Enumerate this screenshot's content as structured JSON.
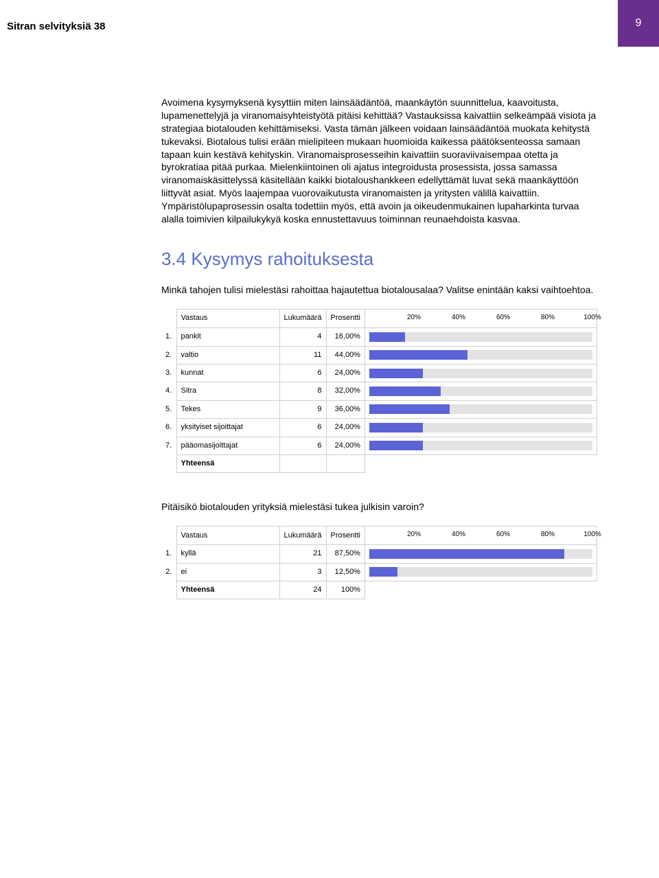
{
  "header": {
    "series_title": "Sitran selvityksiä 38",
    "page_number": "9",
    "page_number_bg": "#6a2e8e",
    "page_number_fg": "#ffffff"
  },
  "body_paragraph": "Avoimena kysymyksenä kysyttiin miten lainsäädäntöä, maankäytön suunnittelua, kaavoitusta, lupamenettelyjä ja viranomaisyhteistyötä pitäisi kehittää? Vastauksissa kaivattiin selkeämpää visiota ja strategiaa biotalouden kehittämiseksi. Vasta tämän jälkeen voidaan lainsäädäntöä muokata kehitystä tukevaksi. Biotalous tulisi erään mielipiteen mukaan huomioida kaikessa päätöksenteossa samaan tapaan kuin kestävä kehityskin. Viranomaisprosesseihin kaivattiin suoraviivaisempaa otetta ja byrokratiaa pitää purkaa. Mielenkiintoinen oli ajatus integroidusta prosessista, jossa samassa viranomaiskäsittelyssä käsitellään kaikki biotaloushankkeen edellyttämät luvat sekä maankäyttöön liittyvät asiat. Myös laajempaa vuorovaikutusta viranomaisten ja yritysten välillä kaivattiin. Ympäristölupaprosessin osalta todettiin myös, että avoin ja oikeudenmukainen lupaharkinta turvaa alalla toimivien kilpailukykyä koska ennustettavuus toiminnan reunaehdoista kasvaa.",
  "section_heading": "3.4 Kysymys rahoituksesta",
  "section_heading_color": "#5c6cca",
  "question1": "Minkä tahojen tulisi mielestäsi rahoittaa hajautettua biotalousalaa? Valitse enintään kaksi vaihtoehtoa.",
  "question2": "Pitäisikö biotalouden yrityksiä mielestäsi tukea julkisin varoin?",
  "table_common": {
    "col_vastaus": "Vastaus",
    "col_lukumaara": "Lukumäärä",
    "col_prosentti": "Prosentti",
    "ticks": [
      "20%",
      "40%",
      "60%",
      "80%",
      "100%"
    ],
    "yhteensa": "Yhteensä",
    "bar_bg": "#e3e3e3",
    "bar_fill": "#5b63d6",
    "border_color": "#d0d0d0"
  },
  "table1": {
    "rows": [
      {
        "idx": "1.",
        "label": "pankit",
        "count": "4",
        "percent": "16,00%",
        "pct_num": 16
      },
      {
        "idx": "2.",
        "label": "valtio",
        "count": "11",
        "percent": "44,00%",
        "pct_num": 44
      },
      {
        "idx": "3.",
        "label": "kunnat",
        "count": "6",
        "percent": "24,00%",
        "pct_num": 24
      },
      {
        "idx": "4.",
        "label": "Sitra",
        "count": "8",
        "percent": "32,00%",
        "pct_num": 32
      },
      {
        "idx": "5.",
        "label": "Tekes",
        "count": "9",
        "percent": "36,00%",
        "pct_num": 36
      },
      {
        "idx": "6.",
        "label": "yksityiset sijoittajat",
        "count": "6",
        "percent": "24,00%",
        "pct_num": 24
      },
      {
        "idx": "7.",
        "label": "pääomasijoittajat",
        "count": "6",
        "percent": "24,00%",
        "pct_num": 24
      }
    ],
    "total_count": "",
    "total_percent": ""
  },
  "table2": {
    "rows": [
      {
        "idx": "1.",
        "label": "kyllä",
        "count": "21",
        "percent": "87,50%",
        "pct_num": 87.5
      },
      {
        "idx": "2.",
        "label": "ei",
        "count": "3",
        "percent": "12,50%",
        "pct_num": 12.5
      }
    ],
    "total_count": "24",
    "total_percent": "100%"
  }
}
